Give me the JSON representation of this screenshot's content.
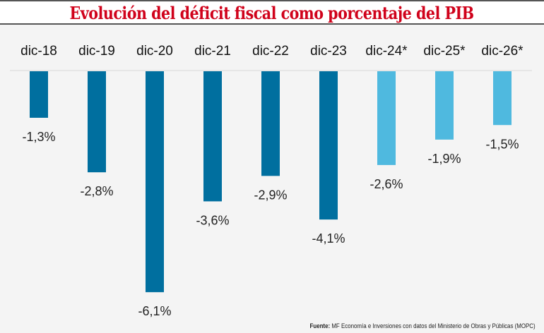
{
  "chart_data": {
    "type": "bar",
    "title": "Evolución del déficit fiscal como porcentaje del PIB",
    "xlabel": "",
    "ylabel": "",
    "categories": [
      "dic-18",
      "dic-19",
      "dic-20",
      "dic-21",
      "dic-22",
      "dic-23",
      "dic-24*",
      "dic-25*",
      "dic-26*"
    ],
    "values": [
      -1.3,
      -2.8,
      -6.1,
      -3.6,
      -2.9,
      -4.1,
      -2.6,
      -1.9,
      -1.5
    ],
    "labels": [
      "-1,3%",
      "-2,8%",
      "-6,1%",
      "-3,6%",
      "-2,9%",
      "-4,1%",
      "-2,6%",
      "-1,9%",
      "-1,5%"
    ],
    "projected": [
      false,
      false,
      false,
      false,
      false,
      false,
      true,
      true,
      true
    ],
    "ylim": [
      -6.1,
      0
    ],
    "grid": false,
    "legend": "none",
    "colors": {
      "actual": "#006f9f",
      "projected": "#4fb9df",
      "title": "#d0021b"
    }
  },
  "source": {
    "label": "Fuente:",
    "text": "MF Economía e Inversiones con datos del Ministerio de Obras y Públicas (MOPC)"
  }
}
